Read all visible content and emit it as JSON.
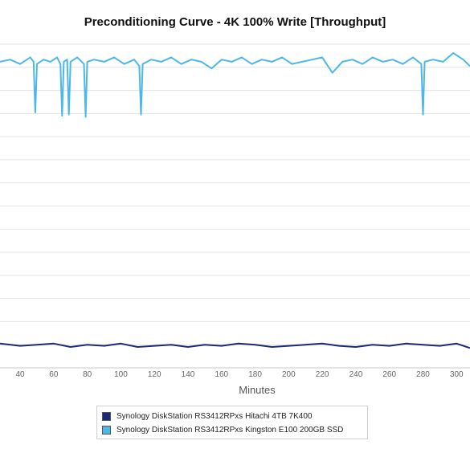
{
  "chart_data": {
    "type": "line",
    "title": "Preconditioning Curve - 4K 100% Write [Throughput]",
    "xlabel": "Minutes",
    "ylabel": "",
    "x_ticks": [
      40,
      60,
      80,
      100,
      120,
      140,
      160,
      180,
      200,
      220,
      240,
      260,
      280,
      300
    ],
    "xlim": [
      28,
      308
    ],
    "grid": true,
    "legend_placement": "bottom",
    "series": [
      {
        "name": "Synology DiskStation RS3412RPxs Hitachi 4TB 7K400",
        "color": "#1a2a78",
        "x": [
          28,
          40,
          50,
          60,
          70,
          80,
          90,
          100,
          110,
          120,
          130,
          140,
          150,
          160,
          170,
          180,
          190,
          200,
          210,
          220,
          230,
          240,
          250,
          260,
          270,
          280,
          290,
          300,
          308
        ],
        "values": [
          1.1,
          1.0,
          1.05,
          1.1,
          0.95,
          1.05,
          1.0,
          1.1,
          0.95,
          1.0,
          1.05,
          0.95,
          1.05,
          1.0,
          1.1,
          1.05,
          0.95,
          1.0,
          1.05,
          1.1,
          1.0,
          0.95,
          1.05,
          1.0,
          1.1,
          1.05,
          1.0,
          1.1,
          0.9
        ]
      },
      {
        "name": "Synology DiskStation RS3412RPxs Kingston E100 200GB SSD",
        "color": "#4db8e8",
        "x": [
          28,
          34,
          40,
          46,
          48,
          49,
          50,
          54,
          58,
          62,
          64,
          65,
          66,
          68,
          69,
          70,
          74,
          78,
          79,
          80,
          84,
          90,
          96,
          102,
          108,
          111,
          112,
          113,
          118,
          124,
          130,
          136,
          142,
          148,
          154,
          160,
          166,
          172,
          178,
          184,
          190,
          196,
          202,
          208,
          214,
          220,
          226,
          232,
          238,
          244,
          250,
          256,
          262,
          268,
          274,
          279,
          280,
          281,
          286,
          292,
          298,
          304,
          308
        ],
        "values": [
          13.9,
          14.0,
          13.8,
          14.1,
          13.9,
          11.6,
          13.8,
          14.0,
          13.9,
          14.1,
          13.8,
          11.45,
          13.9,
          14.0,
          11.5,
          13.9,
          14.1,
          13.8,
          11.4,
          13.9,
          14.0,
          13.9,
          14.1,
          13.8,
          14.0,
          13.7,
          11.5,
          13.8,
          14.0,
          13.9,
          14.1,
          13.8,
          14.0,
          13.9,
          13.6,
          14.0,
          13.9,
          14.1,
          13.8,
          14.0,
          13.9,
          14.1,
          13.8,
          13.9,
          14.0,
          14.1,
          13.4,
          13.9,
          14.0,
          13.8,
          14.1,
          13.9,
          14.0,
          13.8,
          14.1,
          13.8,
          11.5,
          13.9,
          14.0,
          13.9,
          14.3,
          14.0,
          13.7
        ]
      }
    ]
  }
}
